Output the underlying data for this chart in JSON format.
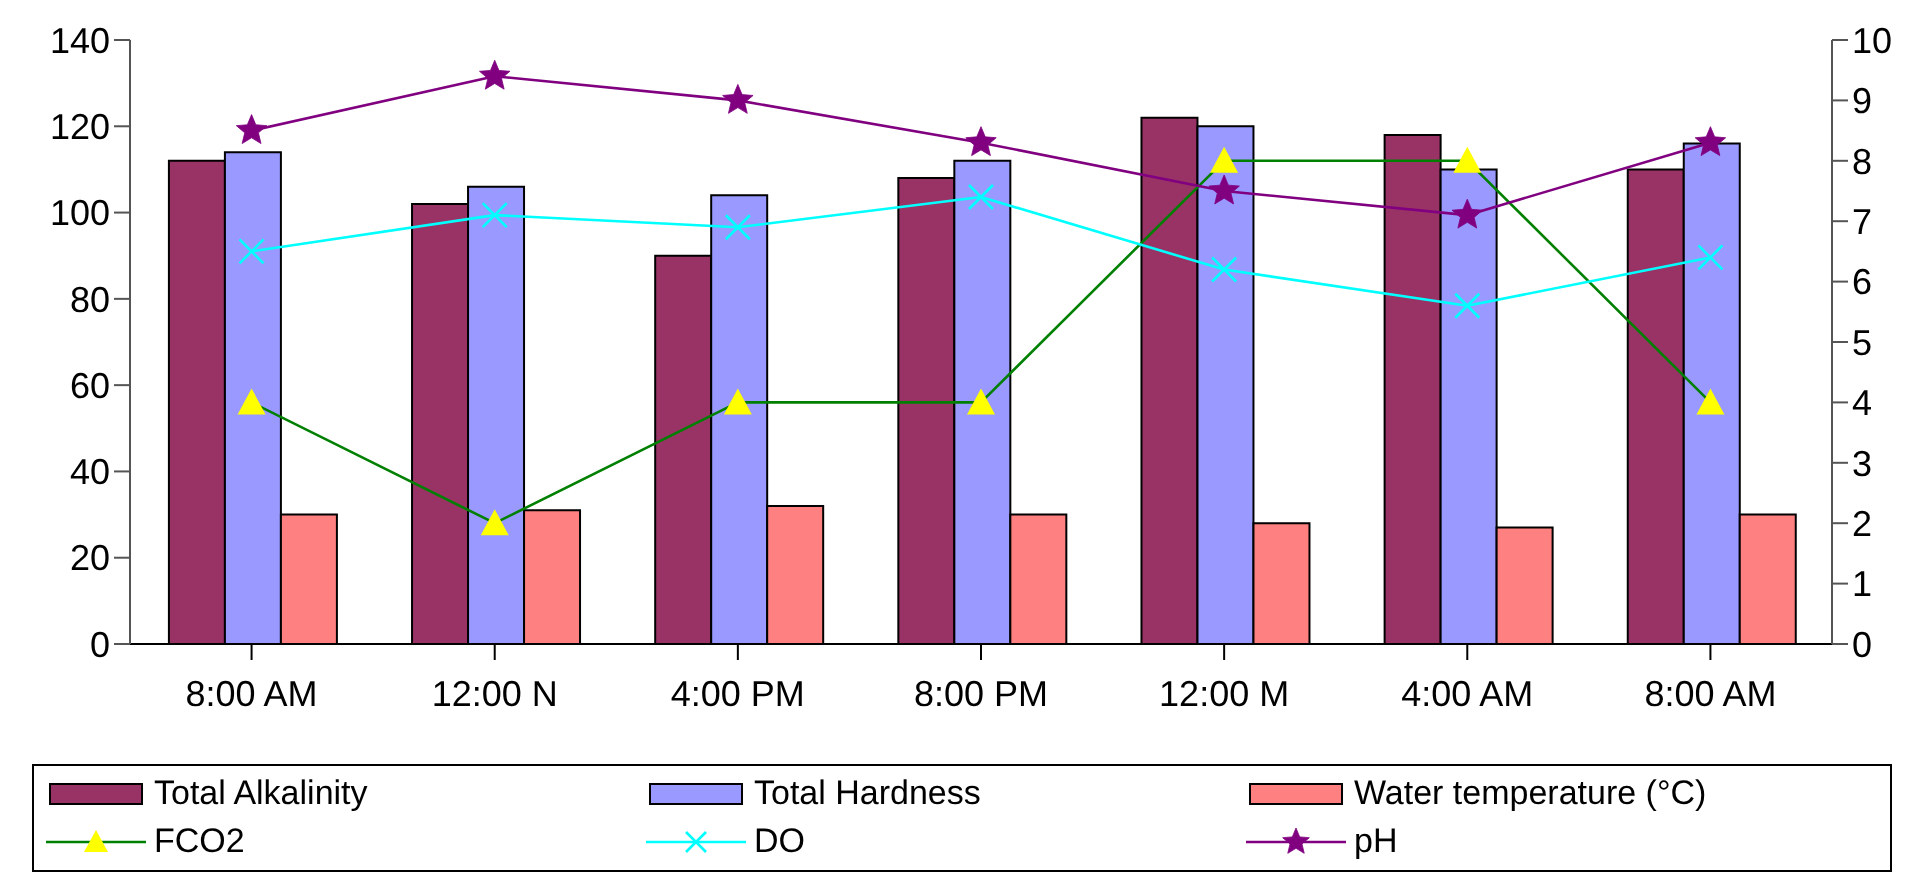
{
  "chart_data": {
    "type": "bar",
    "categories": [
      "8:00 AM",
      "12:00 N",
      "4:00 PM",
      "8:00 PM",
      "12:00 M",
      "4:00 AM",
      "8:00 AM"
    ],
    "series": [
      {
        "name": "Total Alkalinity",
        "color": "#993366",
        "values": [
          112,
          102,
          90,
          108,
          122,
          118,
          110
        ]
      },
      {
        "name": "Total Hardness",
        "color": "#9999ff",
        "values": [
          114,
          106,
          104,
          112,
          120,
          110,
          116
        ]
      },
      {
        "name": "Water temperature (°C)",
        "color": "#ff8080",
        "values": [
          30,
          31,
          32,
          30,
          28,
          27,
          30
        ]
      },
      {
        "name": "FCO2",
        "type": "line",
        "axis": "y2",
        "color": "#008000",
        "colors": [
          "#ffff00",
          "#ffff00",
          "#ffff00",
          "#ffff00",
          "#ffff00",
          "#ffff00",
          "#ffff00"
        ],
        "marker": "triangle",
        "values": [
          4,
          2,
          4,
          4,
          8,
          8,
          4
        ]
      },
      {
        "name": "DO",
        "type": "line",
        "axis": "y2",
        "color": "#00ffff",
        "marker": "cross",
        "values": [
          6.5,
          7.1,
          6.9,
          7.4,
          6.2,
          5.6,
          6.4
        ]
      },
      {
        "name": "pH",
        "type": "line",
        "axis": "y2",
        "color": "#800080",
        "marker": "star",
        "values": [
          8.5,
          9.4,
          9.0,
          8.3,
          7.5,
          7.1,
          8.3
        ]
      }
    ],
    "ylim": [
      0,
      140
    ],
    "yticks": [
      0,
      20,
      40,
      60,
      80,
      100,
      120,
      140
    ],
    "y2lim": [
      0,
      10
    ],
    "y2ticks": [
      0,
      1,
      2,
      3,
      4,
      5,
      6,
      7,
      8,
      9,
      10
    ],
    "grid": false,
    "legend": "bottom",
    "line_style": "solid"
  }
}
